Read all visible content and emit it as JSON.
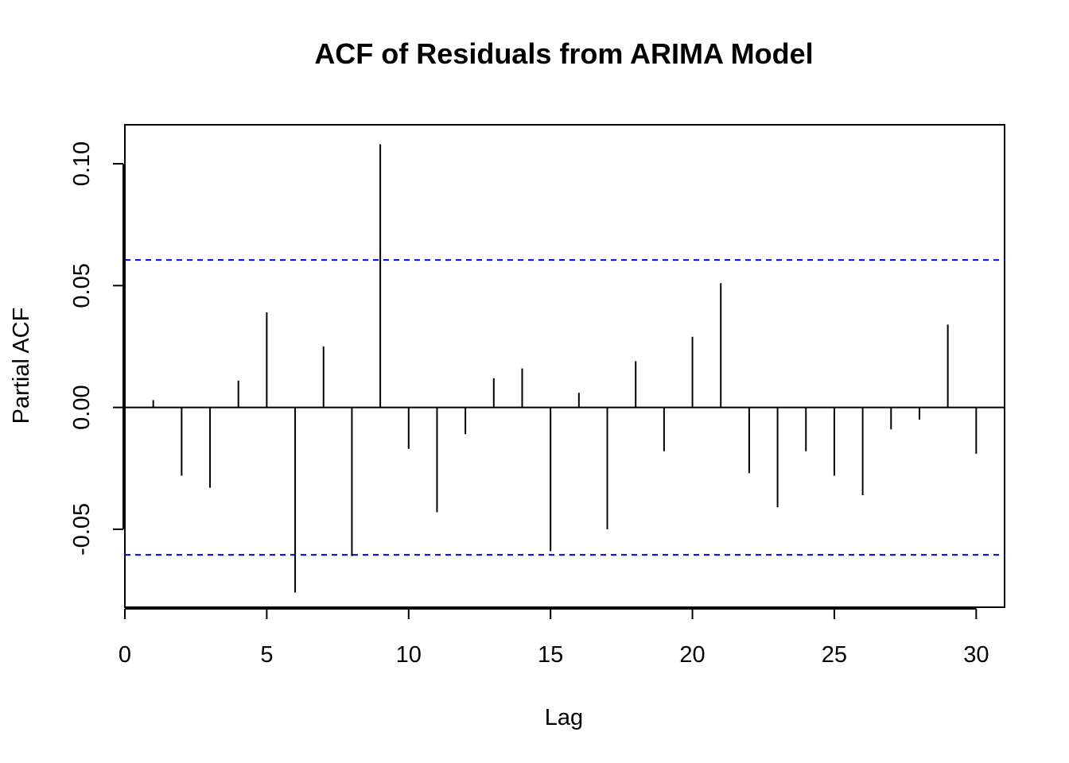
{
  "chart_data": {
    "type": "bar",
    "title": "ACF of Residuals from ARIMA Model",
    "xlabel": "Lag",
    "ylabel": "Partial ACF",
    "xlim": [
      0,
      31
    ],
    "ylim": [
      -0.082,
      0.116
    ],
    "x_ticks": [
      0,
      5,
      10,
      15,
      20,
      25,
      30
    ],
    "x_tick_labels": [
      "0",
      "5",
      "10",
      "15",
      "20",
      "25",
      "30"
    ],
    "y_ticks": [
      -0.05,
      0.0,
      0.05,
      0.1
    ],
    "y_tick_labels": [
      "-0.05",
      "0.00",
      "0.05",
      "0.10"
    ],
    "confidence_bounds": [
      0.0605,
      -0.0605
    ],
    "confidence_color": "#0000ff",
    "bar_color": "#000000",
    "grid": false,
    "lags": [
      1,
      2,
      3,
      4,
      5,
      6,
      7,
      8,
      9,
      10,
      11,
      12,
      13,
      14,
      15,
      16,
      17,
      18,
      19,
      20,
      21,
      22,
      23,
      24,
      25,
      26,
      27,
      28,
      29,
      30
    ],
    "values": [
      0.003,
      -0.028,
      -0.033,
      0.011,
      0.039,
      -0.076,
      0.025,
      -0.061,
      0.108,
      -0.017,
      -0.043,
      -0.011,
      0.012,
      0.016,
      -0.059,
      0.006,
      -0.05,
      0.019,
      -0.018,
      0.029,
      0.051,
      -0.027,
      -0.041,
      -0.018,
      -0.028,
      -0.036,
      -0.009,
      -0.005,
      0.034,
      -0.019
    ]
  }
}
